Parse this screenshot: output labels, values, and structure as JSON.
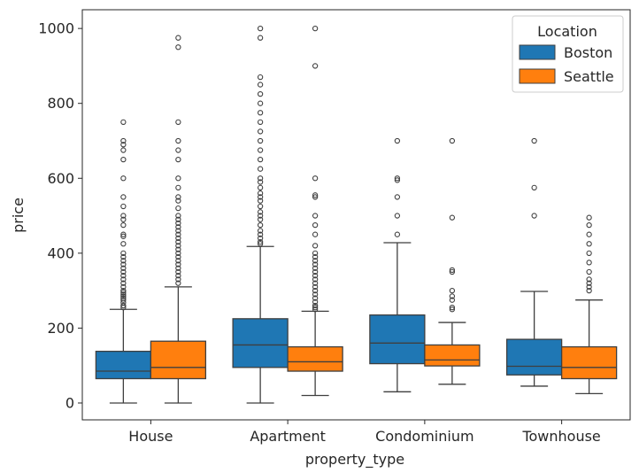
{
  "chart_data": {
    "type": "boxplot",
    "xlabel": "property_type",
    "ylabel": "price",
    "categories": [
      "House",
      "Apartment",
      "Condominium",
      "Townhouse"
    ],
    "ylim": [
      -45,
      1050
    ],
    "yticks": [
      0,
      200,
      400,
      600,
      800,
      1000
    ],
    "legend": {
      "title": "Location",
      "placement": "top-right"
    },
    "series": [
      {
        "name": "Boston",
        "color": "#1f77b4",
        "boxes": [
          {
            "whisker_low": 0,
            "q1": 65,
            "median": 85,
            "q3": 138,
            "whisker_high": 250,
            "outliers": [
              255,
              260,
              268,
              275,
              280,
              285,
              290,
              295,
              300,
              310,
              320,
              330,
              340,
              350,
              360,
              370,
              380,
              390,
              400,
              425,
              445,
              450,
              475,
              490,
              500,
              525,
              550,
              600,
              650,
              675,
              690,
              700,
              750
            ]
          },
          {
            "whisker_low": 0,
            "q1": 95,
            "median": 155,
            "q3": 225,
            "whisker_high": 418,
            "outliers": [
              425,
              430,
              440,
              450,
              460,
              475,
              490,
              500,
              510,
              525,
              540,
              550,
              560,
              575,
              590,
              600,
              625,
              650,
              675,
              700,
              725,
              750,
              775,
              800,
              825,
              850,
              870,
              975,
              1000
            ]
          },
          {
            "whisker_low": 30,
            "q1": 105,
            "median": 160,
            "q3": 235,
            "whisker_high": 428,
            "outliers": [
              450,
              500,
              550,
              595,
              600,
              700
            ]
          },
          {
            "whisker_low": 45,
            "q1": 75,
            "median": 98,
            "q3": 170,
            "whisker_high": 298,
            "outliers": [
              500,
              575,
              700
            ]
          }
        ]
      },
      {
        "name": "Seattle",
        "color": "#ff7f0e",
        "boxes": [
          {
            "whisker_low": 0,
            "q1": 65,
            "median": 95,
            "q3": 165,
            "whisker_high": 310,
            "outliers": [
              320,
              330,
              340,
              350,
              360,
              370,
              380,
              390,
              400,
              410,
              420,
              430,
              440,
              450,
              460,
              470,
              480,
              490,
              500,
              520,
              540,
              550,
              575,
              600,
              650,
              675,
              700,
              750,
              950,
              975
            ]
          },
          {
            "whisker_low": 20,
            "q1": 85,
            "median": 110,
            "q3": 150,
            "whisker_high": 245,
            "outliers": [
              250,
              255,
              260,
              270,
              280,
              290,
              300,
              310,
              320,
              330,
              340,
              350,
              360,
              370,
              380,
              390,
              400,
              420,
              450,
              475,
              500,
              550,
              555,
              600,
              900,
              1000
            ]
          },
          {
            "whisker_low": 50,
            "q1": 99,
            "median": 115,
            "q3": 155,
            "whisker_high": 215,
            "outliers": [
              250,
              255,
              275,
              285,
              300,
              350,
              355,
              495,
              700
            ]
          },
          {
            "whisker_low": 25,
            "q1": 65,
            "median": 95,
            "q3": 150,
            "whisker_high": 275,
            "outliers": [
              300,
              310,
              320,
              330,
              350,
              375,
              400,
              425,
              450,
              475,
              495
            ]
          }
        ]
      }
    ]
  }
}
